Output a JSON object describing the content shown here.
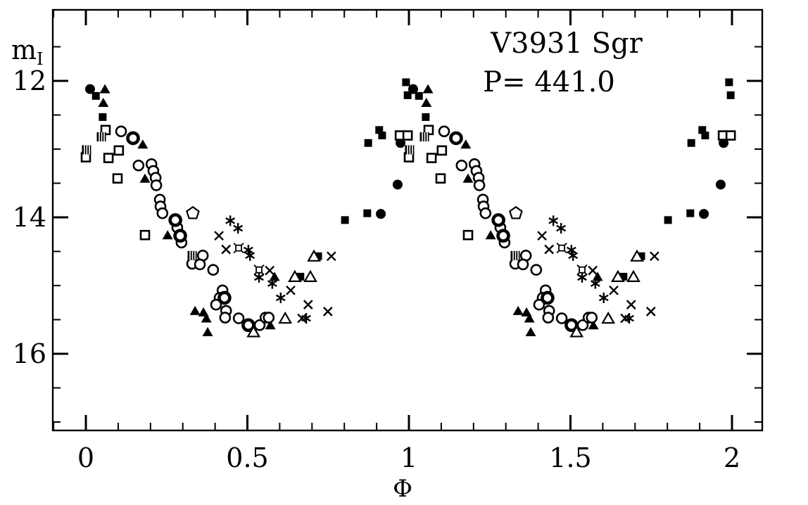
{
  "title": {
    "line1": "V3931 Sgr",
    "line2": "P= 441.0"
  },
  "axes": {
    "xlabel": "Φ",
    "ylabel_main": "m",
    "ylabel_sub": "I",
    "x_tick_labels": [
      "0",
      "0.5",
      "1",
      "1.5",
      "2"
    ],
    "x_tick_values": [
      0,
      0.5,
      1,
      1.5,
      2
    ],
    "x_minor_step": 0.1,
    "x_range": [
      -0.102,
      2.094
    ],
    "y_tick_labels": [
      "12",
      "14",
      "16"
    ],
    "y_tick_values": [
      12,
      14,
      16
    ],
    "y_minor_step": 0.5,
    "y_range_mag": [
      10.96,
      17.15
    ],
    "y_inverted": true,
    "frame_color": "#000000"
  },
  "chart_data": {
    "type": "scatter",
    "title": "V3931 Sgr",
    "period_label": "P= 441.0",
    "xlabel": "Φ",
    "ylabel": "m_I",
    "x_range": [
      -0.102,
      2.094
    ],
    "y_range": [
      10.96,
      17.15
    ],
    "y_axis_inverted_magnitudes": true,
    "note": "Phased I-band light curve; every observation is plotted twice, at phase and phase+1",
    "series": [
      {
        "name": "filled-circle",
        "marker": "filled-circle",
        "points": [
          [
            0.013,
            12.12
          ],
          [
            0.913,
            13.95
          ],
          [
            0.974,
            12.91
          ],
          [
            0.965,
            13.52
          ]
        ]
      },
      {
        "name": "filled-square",
        "marker": "filled-square",
        "points": [
          [
            0.031,
            12.22
          ],
          [
            0.052,
            12.53
          ],
          [
            0.991,
            12.02
          ],
          [
            0.996,
            12.21
          ],
          [
            0.874,
            12.91
          ],
          [
            0.908,
            12.72
          ],
          [
            0.917,
            12.8
          ],
          [
            0.802,
            14.04
          ],
          [
            0.871,
            13.94
          ],
          [
            0.664,
            14.87
          ],
          [
            0.719,
            14.57
          ]
        ]
      },
      {
        "name": "filled-triangle",
        "marker": "filled-triangle",
        "points": [
          [
            0.059,
            12.12
          ],
          [
            0.054,
            12.32
          ],
          [
            0.176,
            12.93
          ],
          [
            0.183,
            13.43
          ],
          [
            0.253,
            14.26
          ],
          [
            0.338,
            15.37
          ],
          [
            0.364,
            15.39
          ],
          [
            0.373,
            15.48
          ],
          [
            0.377,
            15.68
          ],
          [
            0.584,
            14.87
          ],
          [
            0.519,
            15.59
          ],
          [
            0.571,
            15.58
          ]
        ]
      },
      {
        "name": "open-circle",
        "marker": "open-circle",
        "points": [
          [
            0.109,
            12.74
          ],
          [
            0.163,
            13.24
          ],
          [
            0.203,
            13.22
          ],
          [
            0.209,
            13.32
          ],
          [
            0.216,
            13.42
          ],
          [
            0.218,
            13.53
          ],
          [
            0.229,
            13.74
          ],
          [
            0.231,
            13.84
          ],
          [
            0.237,
            13.94
          ],
          [
            0.283,
            14.15
          ],
          [
            0.296,
            14.37
          ],
          [
            0.362,
            14.56
          ],
          [
            0.329,
            14.68
          ],
          [
            0.353,
            14.69
          ],
          [
            0.394,
            14.77
          ],
          [
            0.423,
            15.07
          ],
          [
            0.414,
            15.18
          ],
          [
            0.403,
            15.28
          ],
          [
            0.434,
            15.37
          ],
          [
            0.431,
            15.47
          ],
          [
            0.473,
            15.48
          ],
          [
            0.538,
            15.58
          ],
          [
            0.556,
            15.47
          ],
          [
            0.566,
            15.47
          ]
        ]
      },
      {
        "name": "open-circle-bold",
        "marker": "open-circle-bold",
        "points": [
          [
            0.146,
            12.84
          ],
          [
            0.277,
            14.04
          ],
          [
            0.292,
            14.27
          ],
          [
            0.429,
            15.18
          ],
          [
            0.503,
            15.58
          ]
        ]
      },
      {
        "name": "open-square",
        "marker": "open-square",
        "points": [
          [
            0.061,
            12.72
          ],
          [
            0.0,
            13.12
          ],
          [
            0.07,
            13.13
          ],
          [
            0.102,
            13.02
          ],
          [
            0.098,
            13.43
          ],
          [
            0.183,
            14.26
          ],
          [
            0.972,
            12.8
          ],
          [
            0.996,
            12.8
          ]
        ]
      },
      {
        "name": "open-triangle",
        "marker": "open-triangle",
        "points": [
          [
            0.647,
            14.87
          ],
          [
            0.695,
            14.87
          ],
          [
            0.706,
            14.57
          ],
          [
            0.617,
            15.48
          ],
          [
            0.519,
            15.68
          ]
        ]
      },
      {
        "name": "hatched-square",
        "marker": "hatched-square",
        "points": [
          [
            0.048,
            12.82
          ],
          [
            0.002,
            13.01
          ],
          [
            0.329,
            14.56
          ]
        ]
      },
      {
        "name": "asterisk",
        "marker": "asterisk",
        "points": [
          [
            0.447,
            14.05
          ],
          [
            0.471,
            14.16
          ],
          [
            0.503,
            14.48
          ],
          [
            0.508,
            14.56
          ],
          [
            0.536,
            14.88
          ],
          [
            0.577,
            14.97
          ],
          [
            0.603,
            15.18
          ],
          [
            0.682,
            15.48
          ]
        ]
      },
      {
        "name": "cross",
        "marker": "cross",
        "points": [
          [
            0.412,
            14.27
          ],
          [
            0.434,
            14.47
          ],
          [
            0.569,
            14.78
          ],
          [
            0.634,
            15.07
          ],
          [
            0.688,
            15.28
          ],
          [
            0.749,
            15.38
          ],
          [
            0.669,
            15.48
          ],
          [
            0.76,
            14.57
          ]
        ]
      },
      {
        "name": "square-cross",
        "marker": "square-cross",
        "points": [
          [
            0.473,
            14.45
          ],
          [
            0.536,
            14.77
          ]
        ]
      },
      {
        "name": "open-pentagon",
        "marker": "open-pentagon",
        "points": [
          [
            0.331,
            13.94
          ]
        ]
      }
    ]
  }
}
